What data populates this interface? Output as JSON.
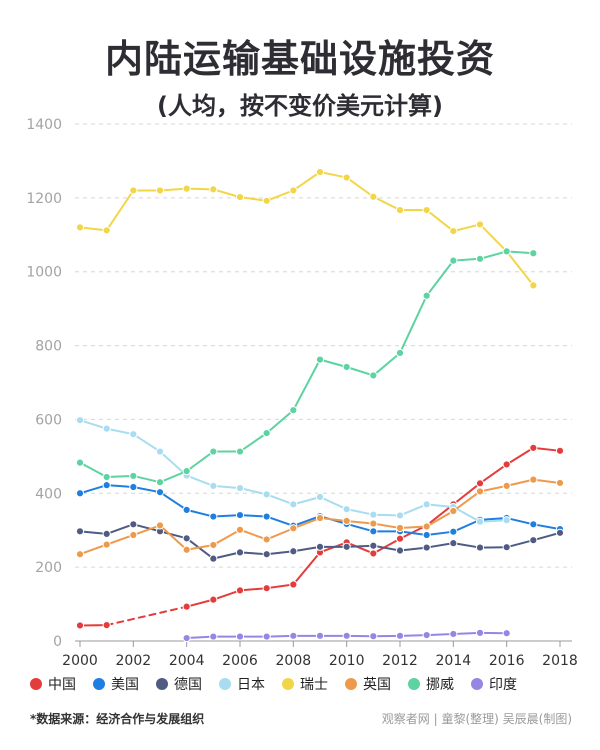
{
  "header": {
    "title": "内陆运输基础设施投资",
    "subtitle": "(人均，按不变价美元计算)"
  },
  "footer": {
    "source": "*数据来源：经济合作与发展组织",
    "credit": "观察者网 | 童黎(整理) 吴辰晨(制图)"
  },
  "chart_data": {
    "type": "line",
    "title": "内陆运输基础设施投资",
    "subtitle": "(人均，按不变价美元计算)",
    "xlabel": "",
    "ylabel": "",
    "xlim": [
      2000,
      2018
    ],
    "ylim": [
      0,
      1400
    ],
    "x_ticks": [
      2000,
      2002,
      2004,
      2006,
      2008,
      2010,
      2012,
      2014,
      2016,
      2018
    ],
    "y_ticks": [
      0,
      200,
      400,
      600,
      800,
      1000,
      1200,
      1400
    ],
    "grid": "horizontal dashed",
    "legend_position": "bottom",
    "series": [
      {
        "name": "中国",
        "color": "#e43c3c",
        "points": [
          [
            2000,
            42
          ],
          [
            2001,
            43
          ],
          [
            2004,
            93
          ],
          [
            2005,
            112
          ],
          [
            2006,
            137
          ],
          [
            2007,
            143
          ],
          [
            2008,
            153
          ],
          [
            2009,
            240
          ],
          [
            2010,
            267
          ],
          [
            2011,
            237
          ],
          [
            2012,
            277
          ],
          [
            2013,
            313
          ],
          [
            2014,
            370
          ],
          [
            2015,
            427
          ],
          [
            2016,
            478
          ],
          [
            2017,
            523
          ],
          [
            2018,
            515
          ]
        ],
        "dashed_between": [
          2001,
          2004
        ]
      },
      {
        "name": "美国",
        "color": "#1f7fe0",
        "points": [
          [
            2000,
            400
          ],
          [
            2001,
            422
          ],
          [
            2002,
            417
          ],
          [
            2003,
            403
          ],
          [
            2004,
            355
          ],
          [
            2005,
            337
          ],
          [
            2006,
            341
          ],
          [
            2007,
            337
          ],
          [
            2008,
            312
          ],
          [
            2009,
            338
          ],
          [
            2010,
            317
          ],
          [
            2011,
            297
          ],
          [
            2012,
            297
          ],
          [
            2013,
            287
          ],
          [
            2014,
            296
          ],
          [
            2015,
            328
          ],
          [
            2016,
            333
          ],
          [
            2017,
            316
          ],
          [
            2018,
            303
          ]
        ]
      },
      {
        "name": "德国",
        "color": "#4f5b82",
        "points": [
          [
            2000,
            297
          ],
          [
            2001,
            290
          ],
          [
            2002,
            316
          ],
          [
            2003,
            297
          ],
          [
            2004,
            278
          ],
          [
            2005,
            223
          ],
          [
            2006,
            240
          ],
          [
            2007,
            235
          ],
          [
            2008,
            243
          ],
          [
            2009,
            255
          ],
          [
            2010,
            255
          ],
          [
            2011,
            258
          ],
          [
            2012,
            245
          ],
          [
            2013,
            253
          ],
          [
            2014,
            265
          ],
          [
            2015,
            253
          ],
          [
            2016,
            254
          ],
          [
            2017,
            273
          ],
          [
            2018,
            293
          ]
        ]
      },
      {
        "name": "日本",
        "color": "#a8dcf0",
        "points": [
          [
            2000,
            598
          ],
          [
            2001,
            575
          ],
          [
            2002,
            560
          ],
          [
            2003,
            513
          ],
          [
            2004,
            448
          ],
          [
            2005,
            420
          ],
          [
            2006,
            414
          ],
          [
            2007,
            397
          ],
          [
            2008,
            370
          ],
          [
            2009,
            390
          ],
          [
            2010,
            357
          ],
          [
            2011,
            342
          ],
          [
            2012,
            340
          ],
          [
            2013,
            370
          ],
          [
            2014,
            363
          ],
          [
            2015,
            323
          ],
          [
            2016,
            327
          ]
        ]
      },
      {
        "name": "瑞士",
        "color": "#f2d64a",
        "points": [
          [
            2000,
            1120
          ],
          [
            2001,
            1112
          ],
          [
            2002,
            1220
          ],
          [
            2003,
            1220
          ],
          [
            2004,
            1225
          ],
          [
            2005,
            1223
          ],
          [
            2006,
            1202
          ],
          [
            2007,
            1192
          ],
          [
            2008,
            1220
          ],
          [
            2009,
            1270
          ],
          [
            2010,
            1255
          ],
          [
            2011,
            1203
          ],
          [
            2012,
            1167
          ],
          [
            2013,
            1167
          ],
          [
            2014,
            1110
          ],
          [
            2015,
            1128
          ],
          [
            2016,
            1055
          ],
          [
            2017,
            963
          ]
        ]
      },
      {
        "name": "英国",
        "color": "#ee9a4d",
        "points": [
          [
            2000,
            235
          ],
          [
            2001,
            261
          ],
          [
            2002,
            287
          ],
          [
            2003,
            313
          ],
          [
            2004,
            247
          ],
          [
            2005,
            260
          ],
          [
            2006,
            301
          ],
          [
            2007,
            275
          ],
          [
            2008,
            305
          ],
          [
            2009,
            333
          ],
          [
            2010,
            325
          ],
          [
            2011,
            318
          ],
          [
            2012,
            306
          ],
          [
            2013,
            310
          ],
          [
            2014,
            352
          ],
          [
            2015,
            405
          ],
          [
            2016,
            420
          ],
          [
            2017,
            437
          ],
          [
            2018,
            428
          ]
        ]
      },
      {
        "name": "挪威",
        "color": "#5cd3a0",
        "points": [
          [
            2000,
            483
          ],
          [
            2001,
            444
          ],
          [
            2002,
            447
          ],
          [
            2003,
            430
          ],
          [
            2004,
            460
          ],
          [
            2005,
            513
          ],
          [
            2006,
            513
          ],
          [
            2007,
            563
          ],
          [
            2008,
            625
          ],
          [
            2009,
            762
          ],
          [
            2010,
            742
          ],
          [
            2011,
            719
          ],
          [
            2012,
            780
          ],
          [
            2013,
            935
          ],
          [
            2014,
            1030
          ],
          [
            2015,
            1035
          ],
          [
            2016,
            1055
          ],
          [
            2017,
            1050
          ]
        ]
      },
      {
        "name": "印度",
        "color": "#9686e3",
        "points": [
          [
            2004,
            8
          ],
          [
            2005,
            12
          ],
          [
            2006,
            12
          ],
          [
            2007,
            12
          ],
          [
            2008,
            14
          ],
          [
            2009,
            14
          ],
          [
            2010,
            14
          ],
          [
            2011,
            13
          ],
          [
            2012,
            14
          ],
          [
            2013,
            16
          ],
          [
            2014,
            19
          ],
          [
            2015,
            22
          ],
          [
            2016,
            21
          ]
        ]
      }
    ]
  }
}
